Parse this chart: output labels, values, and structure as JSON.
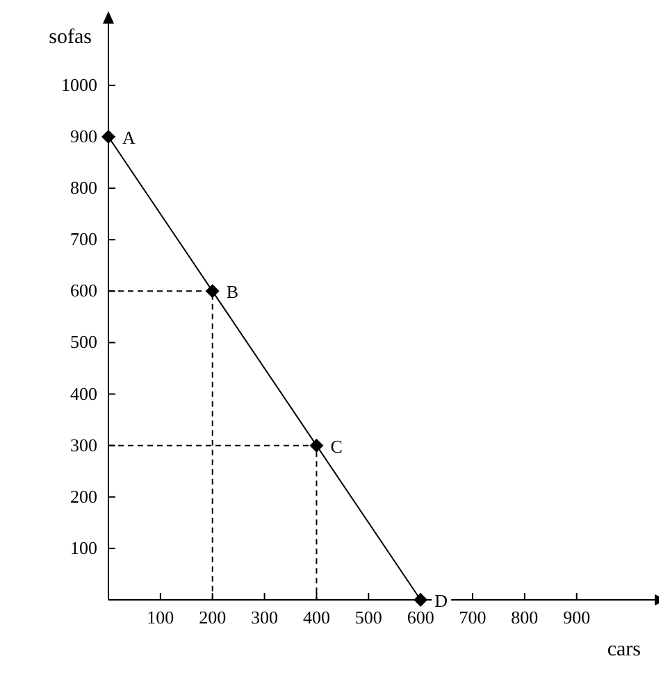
{
  "chart_data": {
    "type": "line",
    "xlabel": "cars",
    "ylabel": "sofas",
    "xlim": [
      0,
      1050
    ],
    "ylim": [
      0,
      1120
    ],
    "xticks": [
      100,
      200,
      300,
      400,
      500,
      600,
      700,
      800,
      900
    ],
    "yticks": [
      100,
      200,
      300,
      400,
      500,
      600,
      700,
      800,
      900,
      1000
    ],
    "grid": false,
    "series": [
      {
        "x": [
          0,
          200,
          400,
          600
        ],
        "values": [
          900,
          600,
          300,
          0
        ],
        "color": "#000000",
        "marker": "diamond",
        "line_style": "solid"
      },
      {
        "x": [
          0,
          200,
          200
        ],
        "values": [
          600,
          600,
          0
        ],
        "color": "#000000",
        "marker": "none",
        "line_style": "dashed"
      },
      {
        "x": [
          0,
          400,
          400
        ],
        "values": [
          300,
          300,
          0
        ],
        "color": "#000000",
        "marker": "none",
        "line_style": "dashed"
      }
    ],
    "annotations": [
      {
        "text": "A",
        "x": 0,
        "y": 900
      },
      {
        "text": "B",
        "x": 200,
        "y": 600
      },
      {
        "text": "C",
        "x": 400,
        "y": 300
      },
      {
        "text": "D",
        "x": 600,
        "y": 0
      }
    ]
  }
}
